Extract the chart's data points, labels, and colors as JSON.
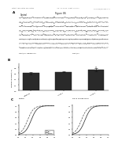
{
  "header_left": "Patent Application Publication",
  "header_mid": "Jun. 13, 2013  Sheet 17 of 74",
  "header_right": "US 2013/0158044 A1",
  "figure_label": "Figure 86",
  "panel_a_label": "A",
  "panel_b_label": "B",
  "panel_c_label": "C",
  "panel_a_sublabel": "Control",
  "bg_color": "#ffffff",
  "text_color": "#222222",
  "bar_colors": [
    "#2a2a2a",
    "#2a2a2a",
    "#2a2a2a"
  ],
  "bar_values": [
    0.6,
    0.65,
    0.72
  ],
  "bar_labels": [
    "Baseline",
    "Drug 1",
    "Drug 2"
  ],
  "trace_color": "#333333",
  "n_traces": 8,
  "panel_c_left_title": "Control",
  "panel_c_right_title": "Flp-In compound 5",
  "legend_line1": "BzCl",
  "legend_line2": "Fluvox"
}
